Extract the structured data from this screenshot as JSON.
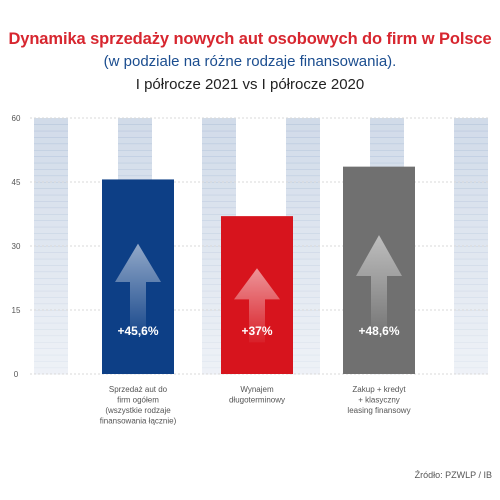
{
  "title": "Dynamika sprzedaży nowych aut osobowych do firm w Polsce",
  "subtitle": "(w podziale na różne rodzaje finansowania).",
  "period": "I półrocze 2021 vs I półrocze 2020",
  "source": "Źródło: PZWLP / IB",
  "colors": {
    "title": "#d7262f",
    "subtitle": "#1b4d8f",
    "bar1": "#0d3f86",
    "bar2": "#d7141d",
    "bar3": "#707070"
  },
  "chart_data": {
    "type": "bar",
    "categories": [
      [
        "Sprzedaż aut do",
        "firm ogółem",
        "(wszystkie rodzaje",
        "finansowania łącznie)"
      ],
      [
        "Wynajem",
        "długoterminowy"
      ],
      [
        "Zakup + kredyt",
        "+ klasyczny",
        "leasing finansowy"
      ]
    ],
    "values": [
      45.6,
      37,
      48.6
    ],
    "data_labels": [
      "+45,6%",
      "+37%",
      "+48,6%"
    ],
    "yticks": [
      0,
      15,
      30,
      45,
      60
    ],
    "ylim": [
      0,
      60
    ],
    "grid": true,
    "decoration": "arrow-up-icon"
  }
}
